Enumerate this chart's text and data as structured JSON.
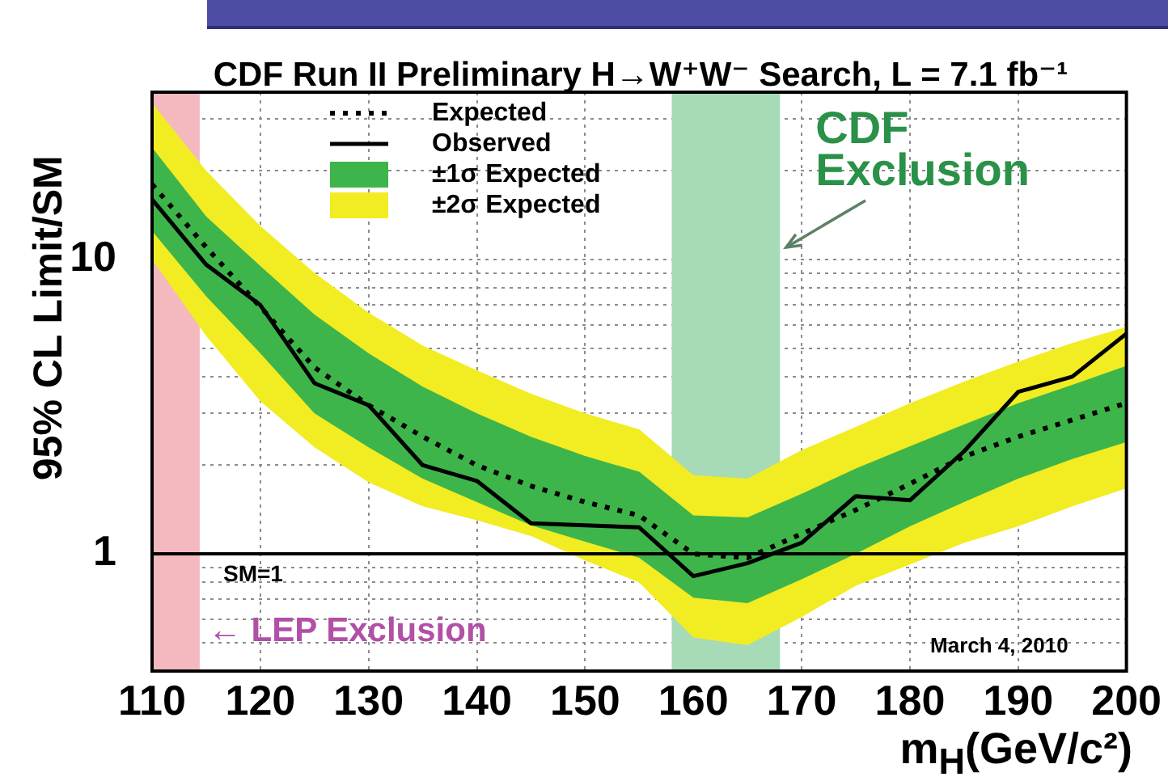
{
  "chart_data": {
    "type": "line",
    "title": "CDF Run II Preliminary H→W⁺W⁻ Search, L = 7.1 fb⁻¹",
    "xlabel": "m$_{H}$(GeV/c²)",
    "ylabel": "95% CL Limit/SM",
    "x": [
      110,
      115,
      120,
      125,
      130,
      135,
      140,
      145,
      150,
      155,
      160,
      165,
      170,
      175,
      180,
      185,
      190,
      195,
      200
    ],
    "series": [
      {
        "name": "Expected",
        "type": "line",
        "color": "#000000",
        "line_style": "dotted",
        "values": [
          18,
          11,
          6.9,
          4.3,
          3.2,
          2.5,
          2.0,
          1.7,
          1.5,
          1.35,
          1.0,
          0.97,
          1.17,
          1.41,
          1.73,
          2.14,
          2.5,
          2.85,
          3.25
        ]
      },
      {
        "name": "Observed",
        "type": "line",
        "color": "#000000",
        "line_style": "solid",
        "values": [
          16,
          9.6,
          7.0,
          3.8,
          3.2,
          2.0,
          1.77,
          1.27,
          1.25,
          1.23,
          0.84,
          0.93,
          1.09,
          1.57,
          1.52,
          2.23,
          3.55,
          4.0,
          5.6
        ]
      },
      {
        "name": "±1σ Expected",
        "color": "#3eb54a",
        "values": [
          null,
          null,
          null,
          null,
          null,
          null,
          null,
          null,
          null,
          null,
          null,
          null,
          null,
          null,
          null,
          null,
          null,
          null,
          null
        ],
        "lower": [
          12.5,
          7.5,
          4.8,
          3.0,
          2.3,
          1.8,
          1.5,
          1.25,
          1.1,
          0.97,
          0.71,
          0.68,
          0.82,
          1.0,
          1.24,
          1.5,
          1.8,
          2.1,
          2.4
        ],
        "upper": [
          24,
          14,
          9.5,
          6.5,
          4.8,
          3.7,
          3.0,
          2.5,
          2.15,
          1.9,
          1.35,
          1.33,
          1.6,
          1.95,
          2.32,
          2.75,
          3.25,
          3.75,
          4.35
        ]
      },
      {
        "name": "±2σ Expected",
        "color": "#f2ec22",
        "values": [
          null,
          null,
          null,
          null,
          null,
          null,
          null,
          null,
          null,
          null,
          null,
          null,
          null,
          null,
          null,
          null,
          null,
          null,
          null
        ],
        "lower": [
          10,
          5.5,
          3.3,
          2.3,
          1.75,
          1.45,
          1.3,
          1.15,
          0.95,
          0.8,
          0.52,
          0.49,
          0.61,
          0.78,
          0.92,
          1.09,
          1.24,
          1.45,
          1.67
        ],
        "upper": [
          34,
          20,
          13,
          9,
          6.6,
          5.1,
          4.2,
          3.5,
          3.0,
          2.65,
          1.85,
          1.8,
          2.25,
          2.7,
          3.25,
          3.85,
          4.5,
          5.2,
          5.9
        ]
      }
    ],
    "xlim": [
      110,
      200
    ],
    "xticks": [
      110,
      120,
      130,
      140,
      150,
      160,
      170,
      180,
      190,
      200
    ],
    "ylim": [
      0.4,
      37
    ],
    "yticks": [
      {
        "value": 0.4,
        "label": null
      },
      {
        "value": 0.5,
        "label": null
      },
      {
        "value": 0.6,
        "label": null
      },
      {
        "value": 0.7,
        "label": null
      },
      {
        "value": 0.8,
        "label": null
      },
      {
        "value": 0.9,
        "label": null
      },
      1,
      {
        "value": 2,
        "label": null
      },
      {
        "value": 3,
        "label": null
      },
      {
        "value": 4,
        "label": null
      },
      {
        "value": 5,
        "label": null
      },
      {
        "value": 6,
        "label": null
      },
      {
        "value": 7,
        "label": null
      },
      {
        "value": 8,
        "label": null
      },
      {
        "value": 9,
        "label": null
      },
      10,
      {
        "value": 20,
        "label": null
      },
      {
        "value": 30,
        "label": null
      }
    ],
    "log": "y",
    "grid": true,
    "legend": "top left",
    "marker": "none",
    "ref_lines": [
      {
        "axis": "y",
        "value": 1,
        "label": "SM=1",
        "color": "#000000"
      }
    ],
    "bands": [
      {
        "axis": "x",
        "from": 110,
        "to": 114.4,
        "label": "← LEP Exclusion",
        "color": "#f4b9be"
      },
      {
        "axis": "x",
        "from": 158,
        "to": 168,
        "label": "CDF\nExclusion",
        "color": "#a7dab6"
      }
    ],
    "annotations": [
      "March 4, 2010"
    ]
  }
}
